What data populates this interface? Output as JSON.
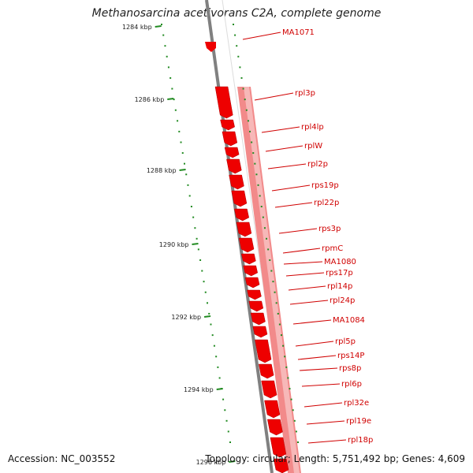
{
  "title": "Methanosarcina acetivorans C2A, complete genome",
  "accession": "Accession: NC_003552",
  "summary": "Topology: circular; Length: 5,751,492 bp; Genes: 4,609",
  "ticks": [
    {
      "label": "1284 kbp"
    },
    {
      "label": "1286 kbp"
    },
    {
      "label": "1288 kbp"
    },
    {
      "label": "1290 kbp"
    },
    {
      "label": "1292 kbp"
    },
    {
      "label": "1294 kbp"
    },
    {
      "label": "1296 kbp"
    }
  ],
  "genes": [
    "MA1071",
    "rpl3p",
    "rpl4lp",
    "rplW",
    "rpl2p",
    "rps19p",
    "rpl22p",
    "rps3p",
    "rpmC",
    "MA1080",
    "rps17p",
    "rpl14p",
    "rpl24p",
    "MA1084",
    "rpl5p",
    "rps14P",
    "rps8p",
    "rpl6p",
    "rpl32e",
    "rpl19e",
    "rpl18p"
  ],
  "colors": {
    "gene": "#ee0000",
    "label": "#d00000",
    "tick": "#228b22",
    "backbone": "#808080"
  }
}
